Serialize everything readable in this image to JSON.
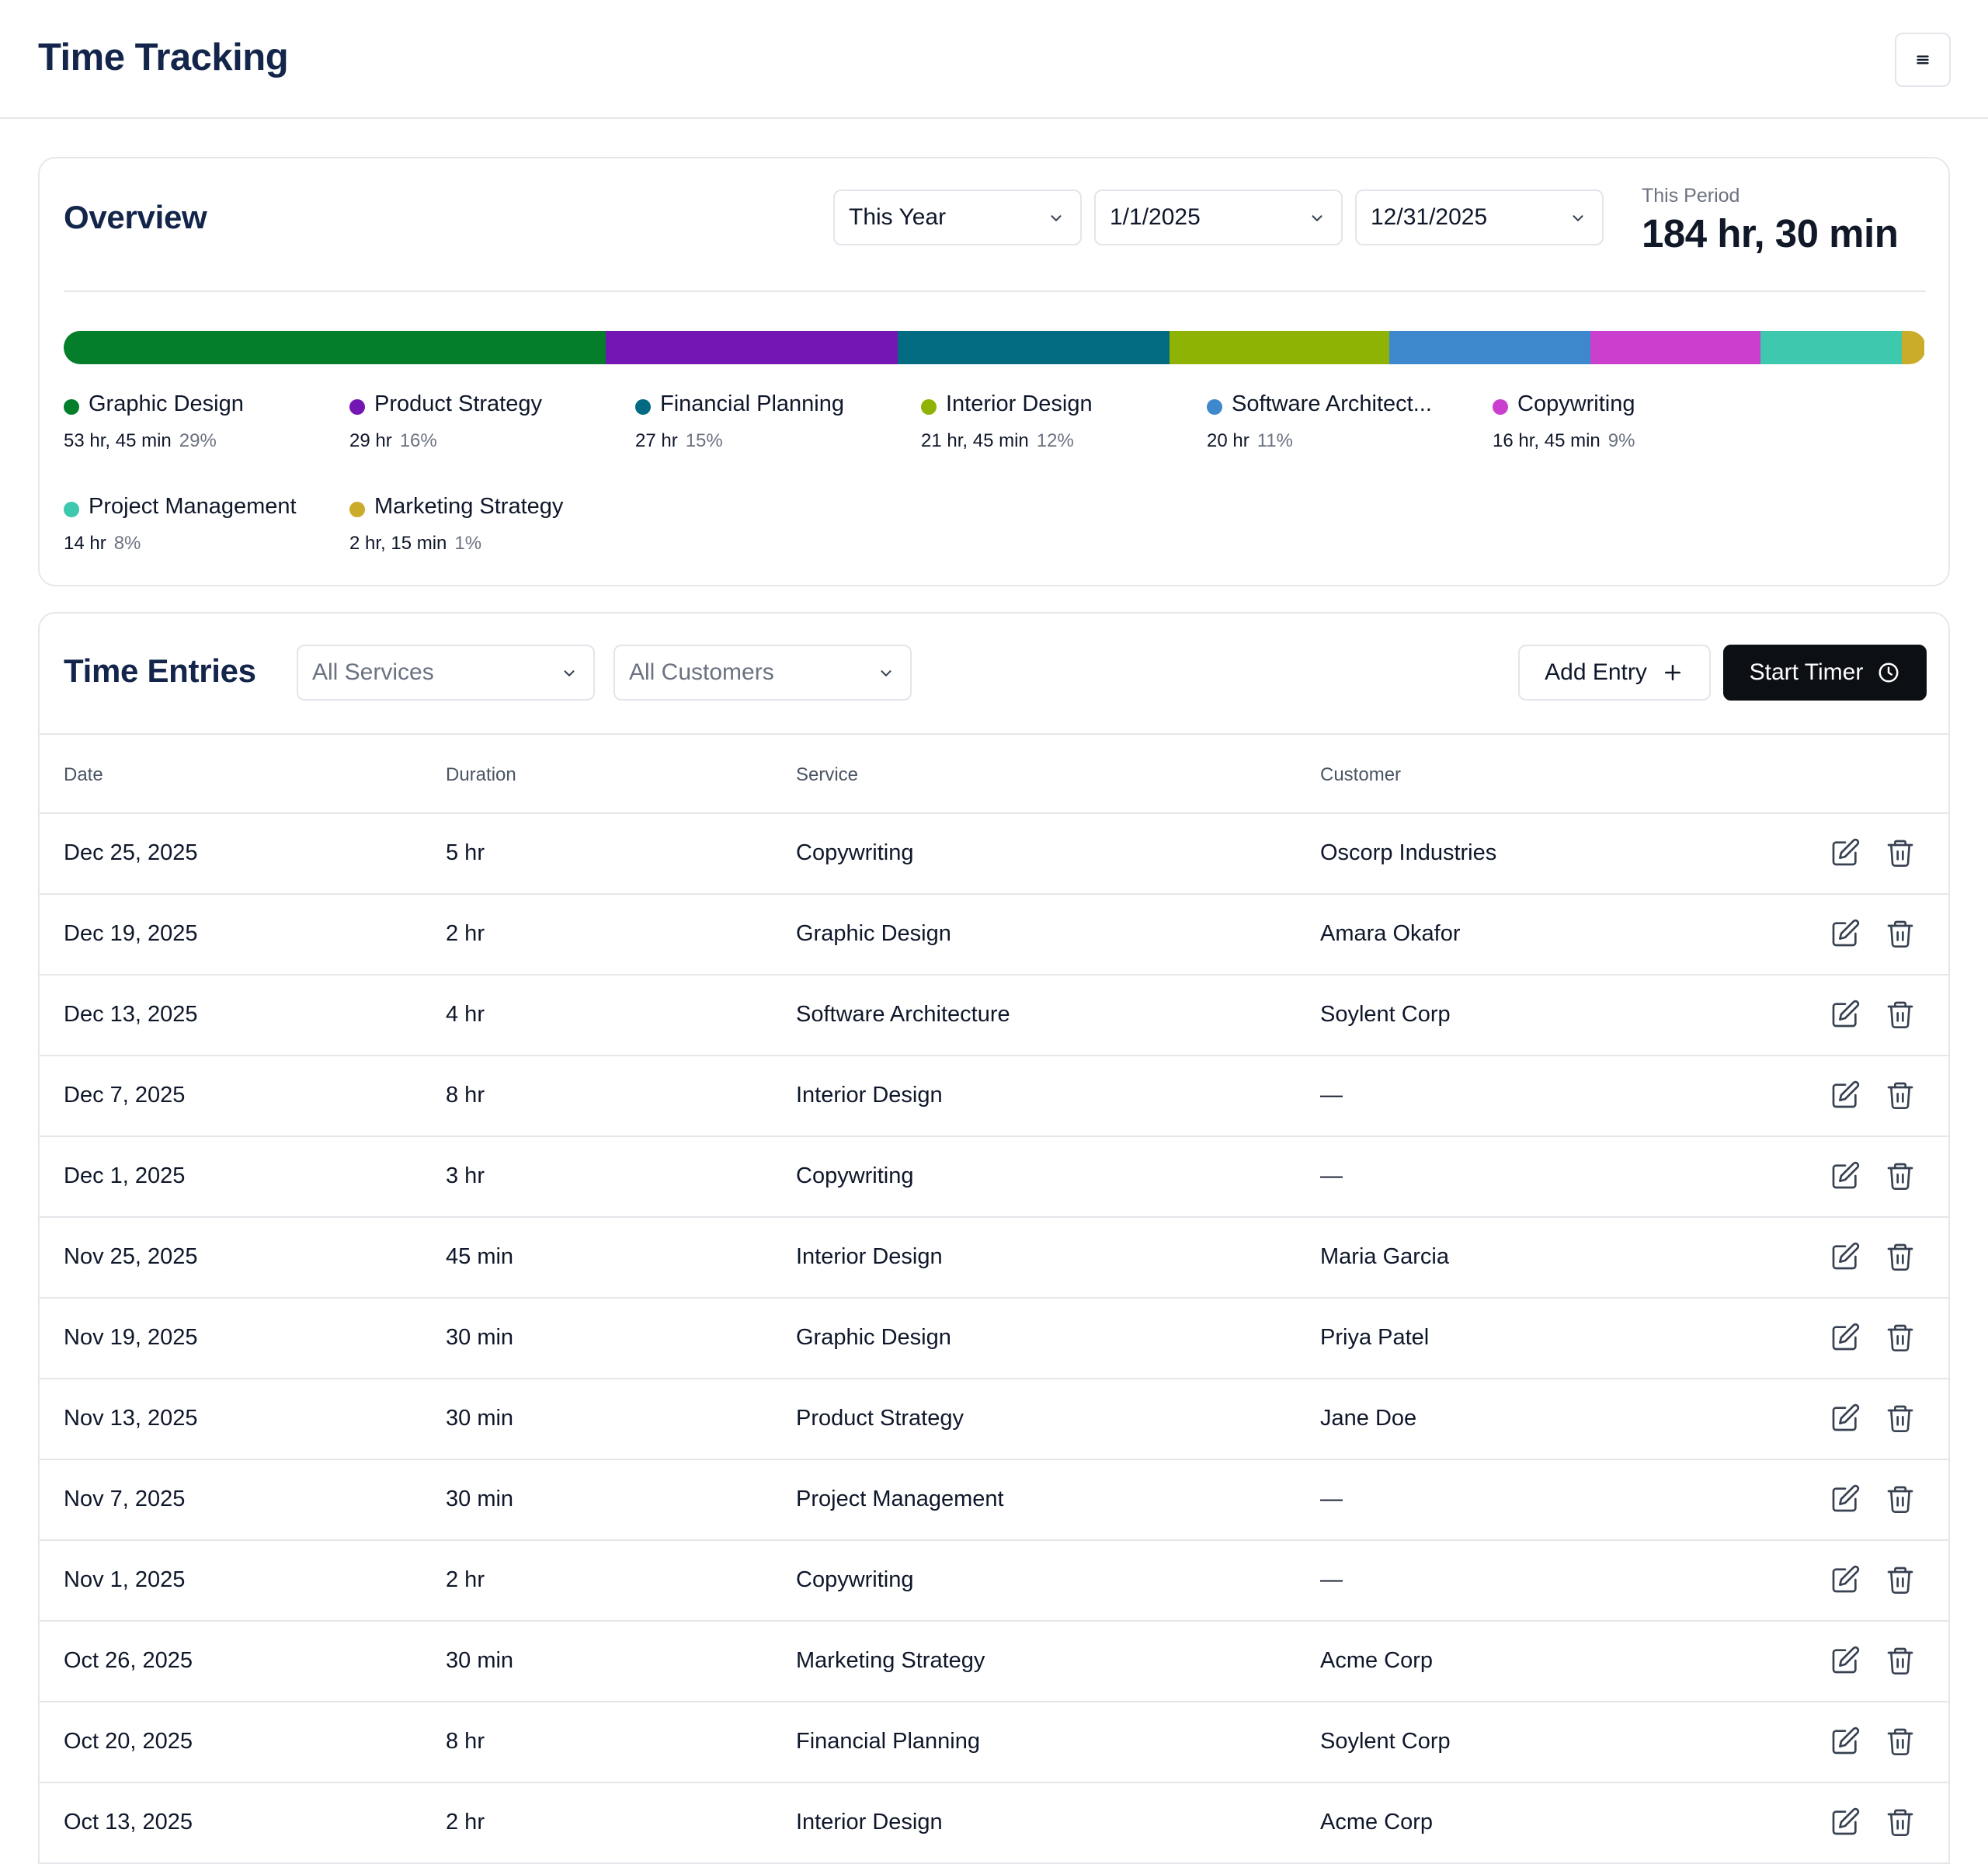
{
  "header": {
    "title": "Time Tracking",
    "menu_icon": "menu-icon"
  },
  "overview": {
    "title": "Overview",
    "range_select": "This Year",
    "start_date": "1/1/2025",
    "end_date": "12/31/2025",
    "period_label": "This Period",
    "period_total": "184 hr, 30 min",
    "services": [
      {
        "name": "Graphic Design",
        "duration": "53 hr, 45 min",
        "percent": "29%",
        "share": 29.1,
        "color": "#047e2a"
      },
      {
        "name": "Product Strategy",
        "duration": "29 hr",
        "percent": "16%",
        "share": 15.7,
        "color": "#7416b3"
      },
      {
        "name": "Financial Planning",
        "duration": "27 hr",
        "percent": "15%",
        "share": 14.6,
        "color": "#036b81"
      },
      {
        "name": "Interior Design",
        "duration": "21 hr, 45 min",
        "percent": "12%",
        "share": 11.8,
        "color": "#8fb304"
      },
      {
        "name": "Software Architect...",
        "duration": "20 hr",
        "percent": "11%",
        "share": 10.8,
        "color": "#3e88ce"
      },
      {
        "name": "Copywriting",
        "duration": "16 hr, 45 min",
        "percent": "9%",
        "share": 9.1,
        "color": "#cb3fce"
      },
      {
        "name": "Project Management",
        "duration": "14 hr",
        "percent": "8%",
        "share": 7.6,
        "color": "#3ec8ad"
      },
      {
        "name": "Marketing Strategy",
        "duration": "2 hr, 15 min",
        "percent": "1%",
        "share": 1.2,
        "color": "#cbab2a"
      }
    ]
  },
  "entries": {
    "title": "Time Entries",
    "service_filter": "All Services",
    "customer_filter": "All Customers",
    "add_entry_label": "Add Entry",
    "start_timer_label": "Start Timer",
    "columns": {
      "date": "Date",
      "duration": "Duration",
      "service": "Service",
      "customer": "Customer"
    },
    "rows": [
      {
        "date": "Dec 25, 2025",
        "duration": "5 hr",
        "service": "Copywriting",
        "customer": "Oscorp Industries"
      },
      {
        "date": "Dec 19, 2025",
        "duration": "2 hr",
        "service": "Graphic Design",
        "customer": "Amara Okafor"
      },
      {
        "date": "Dec 13, 2025",
        "duration": "4 hr",
        "service": "Software Architecture",
        "customer": "Soylent Corp"
      },
      {
        "date": "Dec 7, 2025",
        "duration": "8 hr",
        "service": "Interior Design",
        "customer": "—"
      },
      {
        "date": "Dec 1, 2025",
        "duration": "3 hr",
        "service": "Copywriting",
        "customer": "—"
      },
      {
        "date": "Nov 25, 2025",
        "duration": "45 min",
        "service": "Interior Design",
        "customer": "Maria Garcia"
      },
      {
        "date": "Nov 19, 2025",
        "duration": "30 min",
        "service": "Graphic Design",
        "customer": "Priya Patel"
      },
      {
        "date": "Nov 13, 2025",
        "duration": "30 min",
        "service": "Product Strategy",
        "customer": "Jane Doe"
      },
      {
        "date": "Nov 7, 2025",
        "duration": "30 min",
        "service": "Project Management",
        "customer": "—"
      },
      {
        "date": "Nov 1, 2025",
        "duration": "2 hr",
        "service": "Copywriting",
        "customer": "—"
      },
      {
        "date": "Oct 26, 2025",
        "duration": "30 min",
        "service": "Marketing Strategy",
        "customer": "Acme Corp"
      },
      {
        "date": "Oct 20, 2025",
        "duration": "8 hr",
        "service": "Financial Planning",
        "customer": "Soylent Corp"
      },
      {
        "date": "Oct 13, 2025",
        "duration": "2 hr",
        "service": "Interior Design",
        "customer": "Acme Corp"
      }
    ]
  }
}
